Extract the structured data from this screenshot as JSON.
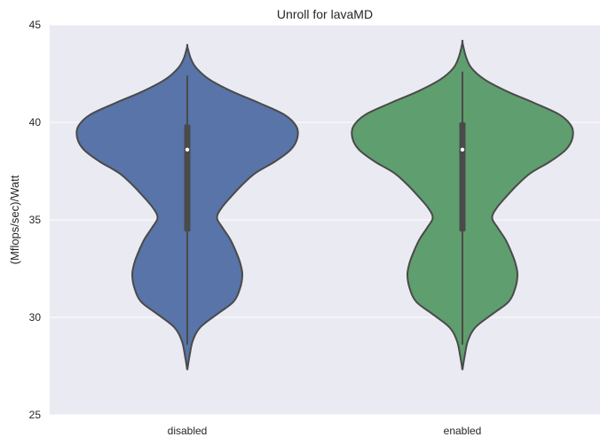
{
  "chart_data": {
    "type": "violin",
    "title": "Unroll for lavaMD",
    "xlabel": "",
    "ylabel": "(Mflops/sec)/Watt",
    "ylim": [
      25,
      45
    ],
    "yticks": [
      25,
      30,
      35,
      40,
      45
    ],
    "categories": [
      "disabled",
      "enabled"
    ],
    "grid": true,
    "colors": {
      "background": "#eaeaf2",
      "grid": "#ffffff",
      "outline": "#4a4a4a",
      "box": "#4a4a4a",
      "median": "#ffffff"
    },
    "series": [
      {
        "category": "disabled",
        "color": "#5874a8",
        "whisker_low": 28.6,
        "q1": 34.4,
        "median": 38.6,
        "q3": 39.9,
        "whisker_high": 42.4,
        "kde_min": 27.3,
        "kde_max": 43.9,
        "density_profile": [
          [
            27.3,
            0.0
          ],
          [
            28.0,
            0.02
          ],
          [
            28.8,
            0.05
          ],
          [
            29.5,
            0.12
          ],
          [
            30.2,
            0.28
          ],
          [
            30.8,
            0.42
          ],
          [
            31.5,
            0.48
          ],
          [
            32.2,
            0.5
          ],
          [
            32.8,
            0.48
          ],
          [
            33.4,
            0.44
          ],
          [
            34.0,
            0.39
          ],
          [
            34.6,
            0.32
          ],
          [
            35.1,
            0.27
          ],
          [
            35.6,
            0.31
          ],
          [
            36.2,
            0.4
          ],
          [
            36.8,
            0.5
          ],
          [
            37.4,
            0.62
          ],
          [
            38.0,
            0.8
          ],
          [
            38.6,
            0.94
          ],
          [
            39.2,
            1.0
          ],
          [
            39.8,
            0.99
          ],
          [
            40.4,
            0.88
          ],
          [
            41.0,
            0.65
          ],
          [
            41.6,
            0.4
          ],
          [
            42.2,
            0.2
          ],
          [
            42.8,
            0.08
          ],
          [
            43.3,
            0.03
          ],
          [
            43.9,
            0.0
          ]
        ]
      },
      {
        "category": "enabled",
        "color": "#5f9e6e",
        "whisker_low": 28.6,
        "q1": 34.4,
        "median": 38.6,
        "q3": 40.0,
        "whisker_high": 42.6,
        "kde_min": 27.3,
        "kde_max": 44.1,
        "density_profile": [
          [
            27.3,
            0.0
          ],
          [
            28.0,
            0.02
          ],
          [
            28.8,
            0.05
          ],
          [
            29.5,
            0.12
          ],
          [
            30.2,
            0.28
          ],
          [
            30.8,
            0.42
          ],
          [
            31.5,
            0.48
          ],
          [
            32.2,
            0.5
          ],
          [
            32.8,
            0.48
          ],
          [
            33.4,
            0.44
          ],
          [
            34.0,
            0.39
          ],
          [
            34.6,
            0.32
          ],
          [
            35.1,
            0.27
          ],
          [
            35.6,
            0.31
          ],
          [
            36.2,
            0.4
          ],
          [
            36.8,
            0.5
          ],
          [
            37.4,
            0.62
          ],
          [
            38.0,
            0.8
          ],
          [
            38.6,
            0.94
          ],
          [
            39.2,
            1.0
          ],
          [
            39.8,
            0.99
          ],
          [
            40.4,
            0.88
          ],
          [
            41.0,
            0.65
          ],
          [
            41.6,
            0.4
          ],
          [
            42.2,
            0.2
          ],
          [
            42.8,
            0.08
          ],
          [
            43.4,
            0.03
          ],
          [
            44.1,
            0.0
          ]
        ]
      }
    ]
  }
}
